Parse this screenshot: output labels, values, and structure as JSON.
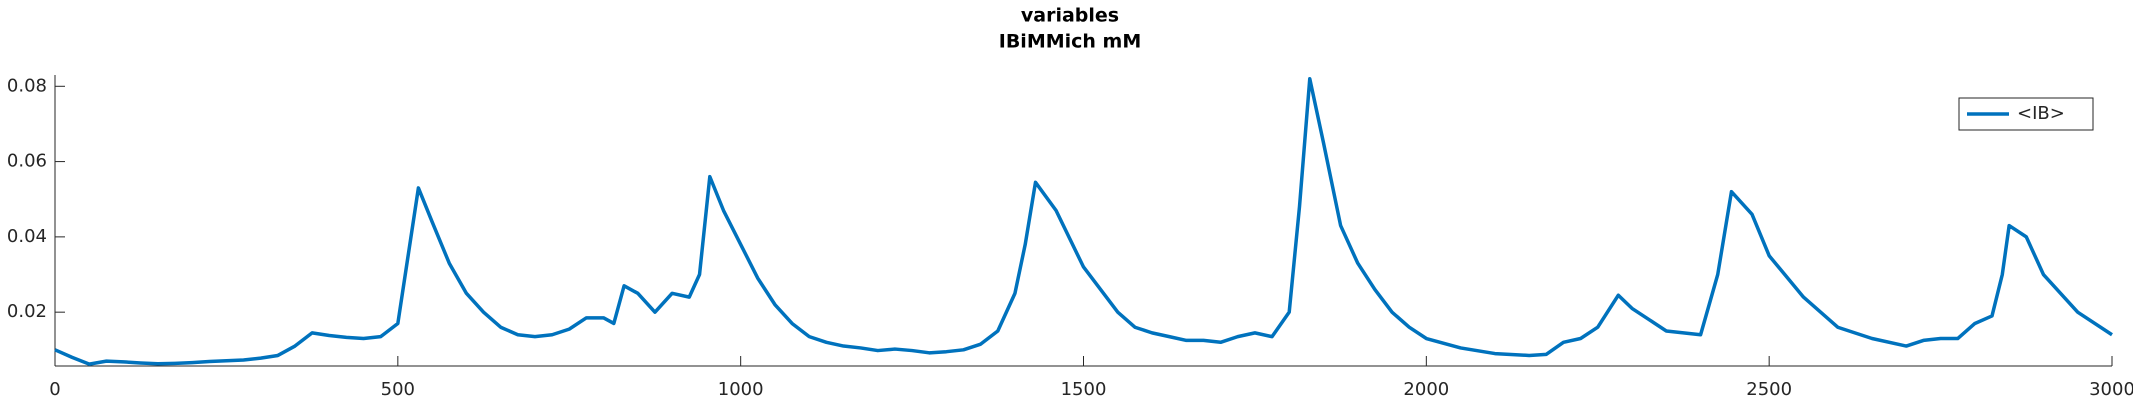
{
  "chart_data": {
    "type": "line",
    "title": "variables",
    "subtitle": "IBiMMich mM",
    "x": [
      0,
      25,
      50,
      75,
      100,
      125,
      150,
      175,
      200,
      225,
      250,
      275,
      300,
      325,
      350,
      375,
      400,
      425,
      450,
      475,
      500,
      515,
      530,
      550,
      575,
      600,
      625,
      650,
      675,
      700,
      725,
      750,
      775,
      800,
      815,
      830,
      850,
      875,
      900,
      925,
      940,
      955,
      975,
      1000,
      1025,
      1050,
      1075,
      1100,
      1125,
      1150,
      1175,
      1200,
      1225,
      1250,
      1275,
      1300,
      1325,
      1350,
      1375,
      1400,
      1415,
      1430,
      1460,
      1500,
      1550,
      1575,
      1600,
      1625,
      1650,
      1675,
      1700,
      1725,
      1750,
      1775,
      1800,
      1815,
      1830,
      1850,
      1875,
      1900,
      1925,
      1950,
      1975,
      2000,
      2050,
      2100,
      2150,
      2175,
      2200,
      2225,
      2250,
      2280,
      2300,
      2325,
      2350,
      2375,
      2400,
      2425,
      2445,
      2475,
      2500,
      2550,
      2600,
      2650,
      2700,
      2725,
      2750,
      2775,
      2800,
      2825,
      2840,
      2850,
      2875,
      2900,
      2950,
      3000
    ],
    "series": [
      {
        "name": "<IB>",
        "color": "#0072bd",
        "values": [
          0.01,
          0.008,
          0.0062,
          0.007,
          0.0068,
          0.0065,
          0.0063,
          0.0064,
          0.0066,
          0.0069,
          0.0071,
          0.0073,
          0.0078,
          0.0085,
          0.011,
          0.0145,
          0.0138,
          0.0133,
          0.013,
          0.0135,
          0.017,
          0.035,
          0.053,
          0.044,
          0.033,
          0.025,
          0.02,
          0.016,
          0.014,
          0.0135,
          0.014,
          0.0155,
          0.0185,
          0.0185,
          0.017,
          0.027,
          0.025,
          0.02,
          0.025,
          0.024,
          0.03,
          0.056,
          0.047,
          0.038,
          0.029,
          0.022,
          0.017,
          0.0135,
          0.012,
          0.011,
          0.0105,
          0.0098,
          0.0102,
          0.0098,
          0.0092,
          0.0095,
          0.01,
          0.0115,
          0.015,
          0.025,
          0.038,
          0.0545,
          0.047,
          0.032,
          0.02,
          0.016,
          0.0145,
          0.0135,
          0.0125,
          0.0125,
          0.012,
          0.0135,
          0.0145,
          0.0135,
          0.02,
          0.048,
          0.082,
          0.065,
          0.043,
          0.033,
          0.026,
          0.02,
          0.016,
          0.013,
          0.0105,
          0.009,
          0.0085,
          0.0088,
          0.012,
          0.013,
          0.016,
          0.0245,
          0.021,
          0.018,
          0.015,
          0.0145,
          0.014,
          0.03,
          0.052,
          0.046,
          0.035,
          0.024,
          0.016,
          0.013,
          0.011,
          0.0125,
          0.013,
          0.013,
          0.017,
          0.019,
          0.03,
          0.043,
          0.04,
          0.03,
          0.02,
          0.014
        ]
      }
    ],
    "xlim": [
      0,
      3000
    ],
    "xticks": [
      0,
      500,
      1000,
      1500,
      2000,
      2500,
      3000
    ],
    "ylim": [
      0.0057,
      0.083
    ],
    "yticks": [
      0.02,
      0.04,
      0.06,
      0.08
    ],
    "legend": "upper right",
    "grid": false
  }
}
